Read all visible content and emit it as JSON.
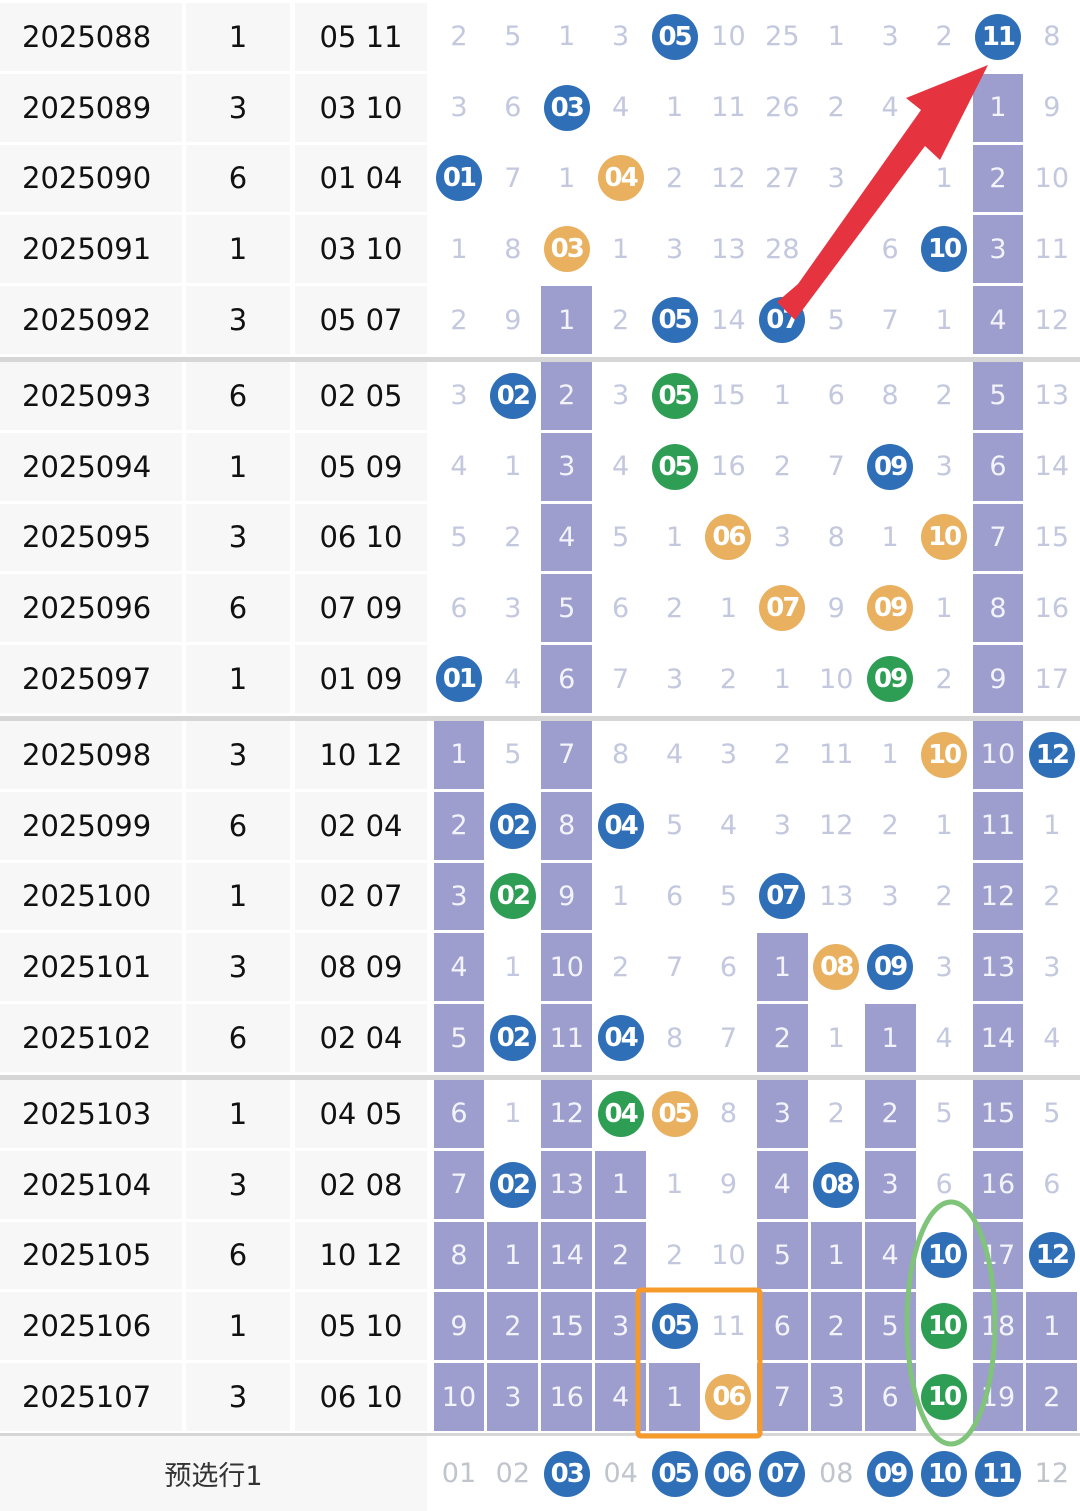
{
  "colors": {
    "blue": "#2f6fb8",
    "orange": "#e8b05f",
    "green": "#2e9e55",
    "bar": "#9d9dce",
    "arrow": "#e5343f",
    "box": "#f59a2b",
    "ellipse": "#7fc47a"
  },
  "rows": [
    {
      "issue": "2025088",
      "sum": "1",
      "nums": "05 11",
      "cells": [
        {
          "t": "2",
          "k": "t"
        },
        {
          "t": "5",
          "k": "t"
        },
        {
          "t": "1",
          "k": "t"
        },
        {
          "t": "3",
          "k": "t"
        },
        {
          "t": "05",
          "k": "b",
          "c": "blue"
        },
        {
          "t": "10",
          "k": "t"
        },
        {
          "t": "25",
          "k": "t"
        },
        {
          "t": "1",
          "k": "t"
        },
        {
          "t": "3",
          "k": "t"
        },
        {
          "t": "2",
          "k": "t"
        },
        {
          "t": "11",
          "k": "b",
          "c": "blue"
        },
        {
          "t": "8",
          "k": "t"
        }
      ]
    },
    {
      "issue": "2025089",
      "sum": "3",
      "nums": "03 10",
      "cells": [
        {
          "t": "3",
          "k": "t"
        },
        {
          "t": "6",
          "k": "t"
        },
        {
          "t": "03",
          "k": "b",
          "c": "blue"
        },
        {
          "t": "4",
          "k": "t"
        },
        {
          "t": "1",
          "k": "t"
        },
        {
          "t": "11",
          "k": "t"
        },
        {
          "t": "26",
          "k": "t"
        },
        {
          "t": "2",
          "k": "t"
        },
        {
          "t": "4",
          "k": "t"
        },
        {
          "t": "",
          "k": "t"
        },
        {
          "t": "1",
          "k": "bar"
        },
        {
          "t": "9",
          "k": "t"
        }
      ]
    },
    {
      "issue": "2025090",
      "sum": "6",
      "nums": "01 04",
      "cells": [
        {
          "t": "01",
          "k": "b",
          "c": "blue"
        },
        {
          "t": "7",
          "k": "t"
        },
        {
          "t": "1",
          "k": "t"
        },
        {
          "t": "04",
          "k": "b",
          "c": "orange"
        },
        {
          "t": "2",
          "k": "t"
        },
        {
          "t": "12",
          "k": "t"
        },
        {
          "t": "27",
          "k": "t"
        },
        {
          "t": "3",
          "k": "t"
        },
        {
          "t": "",
          "k": "t"
        },
        {
          "t": "1",
          "k": "t"
        },
        {
          "t": "2",
          "k": "bar"
        },
        {
          "t": "10",
          "k": "t"
        }
      ]
    },
    {
      "issue": "2025091",
      "sum": "1",
      "nums": "03 10",
      "cells": [
        {
          "t": "1",
          "k": "t"
        },
        {
          "t": "8",
          "k": "t"
        },
        {
          "t": "03",
          "k": "b",
          "c": "orange"
        },
        {
          "t": "1",
          "k": "t"
        },
        {
          "t": "3",
          "k": "t"
        },
        {
          "t": "13",
          "k": "t"
        },
        {
          "t": "28",
          "k": "t"
        },
        {
          "t": "",
          "k": "t"
        },
        {
          "t": "6",
          "k": "t"
        },
        {
          "t": "10",
          "k": "b",
          "c": "blue"
        },
        {
          "t": "3",
          "k": "bar"
        },
        {
          "t": "11",
          "k": "t"
        }
      ]
    },
    {
      "issue": "2025092",
      "sum": "3",
      "nums": "05 07",
      "cells": [
        {
          "t": "2",
          "k": "t"
        },
        {
          "t": "9",
          "k": "t"
        },
        {
          "t": "1",
          "k": "bar"
        },
        {
          "t": "2",
          "k": "t"
        },
        {
          "t": "05",
          "k": "b",
          "c": "blue"
        },
        {
          "t": "14",
          "k": "t"
        },
        {
          "t": "07",
          "k": "b",
          "c": "blue"
        },
        {
          "t": "5",
          "k": "t"
        },
        {
          "t": "7",
          "k": "t"
        },
        {
          "t": "1",
          "k": "t"
        },
        {
          "t": "4",
          "k": "bar"
        },
        {
          "t": "12",
          "k": "t"
        }
      ]
    },
    {
      "issue": "2025093",
      "sum": "6",
      "nums": "02 05",
      "cells": [
        {
          "t": "3",
          "k": "t"
        },
        {
          "t": "02",
          "k": "b",
          "c": "blue"
        },
        {
          "t": "2",
          "k": "bar"
        },
        {
          "t": "3",
          "k": "t"
        },
        {
          "t": "05",
          "k": "b",
          "c": "green"
        },
        {
          "t": "15",
          "k": "t"
        },
        {
          "t": "1",
          "k": "t"
        },
        {
          "t": "6",
          "k": "t"
        },
        {
          "t": "8",
          "k": "t"
        },
        {
          "t": "2",
          "k": "t"
        },
        {
          "t": "5",
          "k": "bar"
        },
        {
          "t": "13",
          "k": "t"
        }
      ]
    },
    {
      "issue": "2025094",
      "sum": "1",
      "nums": "05 09",
      "cells": [
        {
          "t": "4",
          "k": "t"
        },
        {
          "t": "1",
          "k": "t"
        },
        {
          "t": "3",
          "k": "bar"
        },
        {
          "t": "4",
          "k": "t"
        },
        {
          "t": "05",
          "k": "b",
          "c": "green"
        },
        {
          "t": "16",
          "k": "t"
        },
        {
          "t": "2",
          "k": "t"
        },
        {
          "t": "7",
          "k": "t"
        },
        {
          "t": "09",
          "k": "b",
          "c": "blue"
        },
        {
          "t": "3",
          "k": "t"
        },
        {
          "t": "6",
          "k": "bar"
        },
        {
          "t": "14",
          "k": "t"
        }
      ]
    },
    {
      "issue": "2025095",
      "sum": "3",
      "nums": "06 10",
      "cells": [
        {
          "t": "5",
          "k": "t"
        },
        {
          "t": "2",
          "k": "t"
        },
        {
          "t": "4",
          "k": "bar"
        },
        {
          "t": "5",
          "k": "t"
        },
        {
          "t": "1",
          "k": "t"
        },
        {
          "t": "06",
          "k": "b",
          "c": "orange"
        },
        {
          "t": "3",
          "k": "t"
        },
        {
          "t": "8",
          "k": "t"
        },
        {
          "t": "1",
          "k": "t"
        },
        {
          "t": "10",
          "k": "b",
          "c": "orange"
        },
        {
          "t": "7",
          "k": "bar"
        },
        {
          "t": "15",
          "k": "t"
        }
      ]
    },
    {
      "issue": "2025096",
      "sum": "6",
      "nums": "07 09",
      "cells": [
        {
          "t": "6",
          "k": "t"
        },
        {
          "t": "3",
          "k": "t"
        },
        {
          "t": "5",
          "k": "bar"
        },
        {
          "t": "6",
          "k": "t"
        },
        {
          "t": "2",
          "k": "t"
        },
        {
          "t": "1",
          "k": "t"
        },
        {
          "t": "07",
          "k": "b",
          "c": "orange"
        },
        {
          "t": "9",
          "k": "t"
        },
        {
          "t": "09",
          "k": "b",
          "c": "orange"
        },
        {
          "t": "1",
          "k": "t"
        },
        {
          "t": "8",
          "k": "bar"
        },
        {
          "t": "16",
          "k": "t"
        }
      ]
    },
    {
      "issue": "2025097",
      "sum": "1",
      "nums": "01 09",
      "cells": [
        {
          "t": "01",
          "k": "b",
          "c": "blue"
        },
        {
          "t": "4",
          "k": "t"
        },
        {
          "t": "6",
          "k": "bar"
        },
        {
          "t": "7",
          "k": "t"
        },
        {
          "t": "3",
          "k": "t"
        },
        {
          "t": "2",
          "k": "t"
        },
        {
          "t": "1",
          "k": "t"
        },
        {
          "t": "10",
          "k": "t"
        },
        {
          "t": "09",
          "k": "b",
          "c": "green"
        },
        {
          "t": "2",
          "k": "t"
        },
        {
          "t": "9",
          "k": "bar"
        },
        {
          "t": "17",
          "k": "t"
        }
      ]
    },
    {
      "issue": "2025098",
      "sum": "3",
      "nums": "10 12",
      "cells": [
        {
          "t": "1",
          "k": "bar"
        },
        {
          "t": "5",
          "k": "t"
        },
        {
          "t": "7",
          "k": "bar"
        },
        {
          "t": "8",
          "k": "t"
        },
        {
          "t": "4",
          "k": "t"
        },
        {
          "t": "3",
          "k": "t"
        },
        {
          "t": "2",
          "k": "t"
        },
        {
          "t": "11",
          "k": "t"
        },
        {
          "t": "1",
          "k": "t"
        },
        {
          "t": "10",
          "k": "b",
          "c": "orange"
        },
        {
          "t": "10",
          "k": "bar"
        },
        {
          "t": "12",
          "k": "b",
          "c": "blue"
        }
      ]
    },
    {
      "issue": "2025099",
      "sum": "6",
      "nums": "02 04",
      "cells": [
        {
          "t": "2",
          "k": "bar"
        },
        {
          "t": "02",
          "k": "b",
          "c": "blue"
        },
        {
          "t": "8",
          "k": "bar"
        },
        {
          "t": "04",
          "k": "b",
          "c": "blue"
        },
        {
          "t": "5",
          "k": "t"
        },
        {
          "t": "4",
          "k": "t"
        },
        {
          "t": "3",
          "k": "t"
        },
        {
          "t": "12",
          "k": "t"
        },
        {
          "t": "2",
          "k": "t"
        },
        {
          "t": "1",
          "k": "t"
        },
        {
          "t": "11",
          "k": "bar"
        },
        {
          "t": "1",
          "k": "t"
        }
      ]
    },
    {
      "issue": "2025100",
      "sum": "1",
      "nums": "02 07",
      "cells": [
        {
          "t": "3",
          "k": "bar"
        },
        {
          "t": "02",
          "k": "b",
          "c": "green"
        },
        {
          "t": "9",
          "k": "bar"
        },
        {
          "t": "1",
          "k": "t"
        },
        {
          "t": "6",
          "k": "t"
        },
        {
          "t": "5",
          "k": "t"
        },
        {
          "t": "07",
          "k": "b",
          "c": "blue"
        },
        {
          "t": "13",
          "k": "t"
        },
        {
          "t": "3",
          "k": "t"
        },
        {
          "t": "2",
          "k": "t"
        },
        {
          "t": "12",
          "k": "bar"
        },
        {
          "t": "2",
          "k": "t"
        }
      ]
    },
    {
      "issue": "2025101",
      "sum": "3",
      "nums": "08 09",
      "cells": [
        {
          "t": "4",
          "k": "bar"
        },
        {
          "t": "1",
          "k": "t"
        },
        {
          "t": "10",
          "k": "bar"
        },
        {
          "t": "2",
          "k": "t"
        },
        {
          "t": "7",
          "k": "t"
        },
        {
          "t": "6",
          "k": "t"
        },
        {
          "t": "1",
          "k": "bar"
        },
        {
          "t": "08",
          "k": "b",
          "c": "orange"
        },
        {
          "t": "09",
          "k": "b",
          "c": "blue"
        },
        {
          "t": "3",
          "k": "t"
        },
        {
          "t": "13",
          "k": "bar"
        },
        {
          "t": "3",
          "k": "t"
        }
      ]
    },
    {
      "issue": "2025102",
      "sum": "6",
      "nums": "02 04",
      "cells": [
        {
          "t": "5",
          "k": "bar"
        },
        {
          "t": "02",
          "k": "b",
          "c": "blue"
        },
        {
          "t": "11",
          "k": "bar"
        },
        {
          "t": "04",
          "k": "b",
          "c": "blue"
        },
        {
          "t": "8",
          "k": "t"
        },
        {
          "t": "7",
          "k": "t"
        },
        {
          "t": "2",
          "k": "bar"
        },
        {
          "t": "1",
          "k": "t"
        },
        {
          "t": "1",
          "k": "bar"
        },
        {
          "t": "4",
          "k": "t"
        },
        {
          "t": "14",
          "k": "bar"
        },
        {
          "t": "4",
          "k": "t"
        }
      ]
    },
    {
      "issue": "2025103",
      "sum": "1",
      "nums": "04 05",
      "cells": [
        {
          "t": "6",
          "k": "bar"
        },
        {
          "t": "1",
          "k": "t"
        },
        {
          "t": "12",
          "k": "bar"
        },
        {
          "t": "04",
          "k": "b",
          "c": "green"
        },
        {
          "t": "05",
          "k": "b",
          "c": "orange"
        },
        {
          "t": "8",
          "k": "t"
        },
        {
          "t": "3",
          "k": "bar"
        },
        {
          "t": "2",
          "k": "t"
        },
        {
          "t": "2",
          "k": "bar"
        },
        {
          "t": "5",
          "k": "t"
        },
        {
          "t": "15",
          "k": "bar"
        },
        {
          "t": "5",
          "k": "t"
        }
      ]
    },
    {
      "issue": "2025104",
      "sum": "3",
      "nums": "02 08",
      "cells": [
        {
          "t": "7",
          "k": "bar"
        },
        {
          "t": "02",
          "k": "b",
          "c": "blue"
        },
        {
          "t": "13",
          "k": "bar"
        },
        {
          "t": "1",
          "k": "bar"
        },
        {
          "t": "1",
          "k": "t"
        },
        {
          "t": "9",
          "k": "t"
        },
        {
          "t": "4",
          "k": "bar"
        },
        {
          "t": "08",
          "k": "b",
          "c": "blue"
        },
        {
          "t": "3",
          "k": "bar"
        },
        {
          "t": "6",
          "k": "t"
        },
        {
          "t": "16",
          "k": "bar"
        },
        {
          "t": "6",
          "k": "t"
        }
      ]
    },
    {
      "issue": "2025105",
      "sum": "6",
      "nums": "10 12",
      "cells": [
        {
          "t": "8",
          "k": "bar"
        },
        {
          "t": "1",
          "k": "bar"
        },
        {
          "t": "14",
          "k": "bar"
        },
        {
          "t": "2",
          "k": "bar"
        },
        {
          "t": "2",
          "k": "t"
        },
        {
          "t": "10",
          "k": "t"
        },
        {
          "t": "5",
          "k": "bar"
        },
        {
          "t": "1",
          "k": "bar"
        },
        {
          "t": "4",
          "k": "bar"
        },
        {
          "t": "10",
          "k": "b",
          "c": "blue"
        },
        {
          "t": "17",
          "k": "bar"
        },
        {
          "t": "12",
          "k": "b",
          "c": "blue"
        }
      ]
    },
    {
      "issue": "2025106",
      "sum": "1",
      "nums": "05 10",
      "cells": [
        {
          "t": "9",
          "k": "bar"
        },
        {
          "t": "2",
          "k": "bar"
        },
        {
          "t": "15",
          "k": "bar"
        },
        {
          "t": "3",
          "k": "bar"
        },
        {
          "t": "05",
          "k": "b",
          "c": "blue"
        },
        {
          "t": "11",
          "k": "t"
        },
        {
          "t": "6",
          "k": "bar"
        },
        {
          "t": "2",
          "k": "bar"
        },
        {
          "t": "5",
          "k": "bar"
        },
        {
          "t": "10",
          "k": "b",
          "c": "green"
        },
        {
          "t": "18",
          "k": "bar"
        },
        {
          "t": "1",
          "k": "bar"
        }
      ]
    },
    {
      "issue": "2025107",
      "sum": "3",
      "nums": "06 10",
      "cells": [
        {
          "t": "10",
          "k": "bar"
        },
        {
          "t": "3",
          "k": "bar"
        },
        {
          "t": "16",
          "k": "bar"
        },
        {
          "t": "4",
          "k": "bar"
        },
        {
          "t": "1",
          "k": "bar"
        },
        {
          "t": "06",
          "k": "b",
          "c": "orange"
        },
        {
          "t": "7",
          "k": "bar"
        },
        {
          "t": "3",
          "k": "bar"
        },
        {
          "t": "6",
          "k": "bar"
        },
        {
          "t": "10",
          "k": "b",
          "c": "green"
        },
        {
          "t": "19",
          "k": "bar"
        },
        {
          "t": "2",
          "k": "bar"
        }
      ]
    }
  ],
  "footer": {
    "label": "预选行1",
    "cells": [
      {
        "t": "01",
        "k": "t"
      },
      {
        "t": "02",
        "k": "t"
      },
      {
        "t": "03",
        "k": "b",
        "c": "blue"
      },
      {
        "t": "04",
        "k": "t"
      },
      {
        "t": "05",
        "k": "b",
        "c": "blue"
      },
      {
        "t": "06",
        "k": "b",
        "c": "blue"
      },
      {
        "t": "07",
        "k": "b",
        "c": "blue"
      },
      {
        "t": "08",
        "k": "t"
      },
      {
        "t": "09",
        "k": "b",
        "c": "blue"
      },
      {
        "t": "10",
        "k": "b",
        "c": "blue"
      },
      {
        "t": "11",
        "k": "b",
        "c": "blue"
      },
      {
        "t": "12",
        "k": "t"
      }
    ]
  },
  "icons": {
    "arrow": "red-arrow-annotation",
    "box": "orange-box-annotation",
    "ellipse": "green-ellipse-annotation"
  }
}
